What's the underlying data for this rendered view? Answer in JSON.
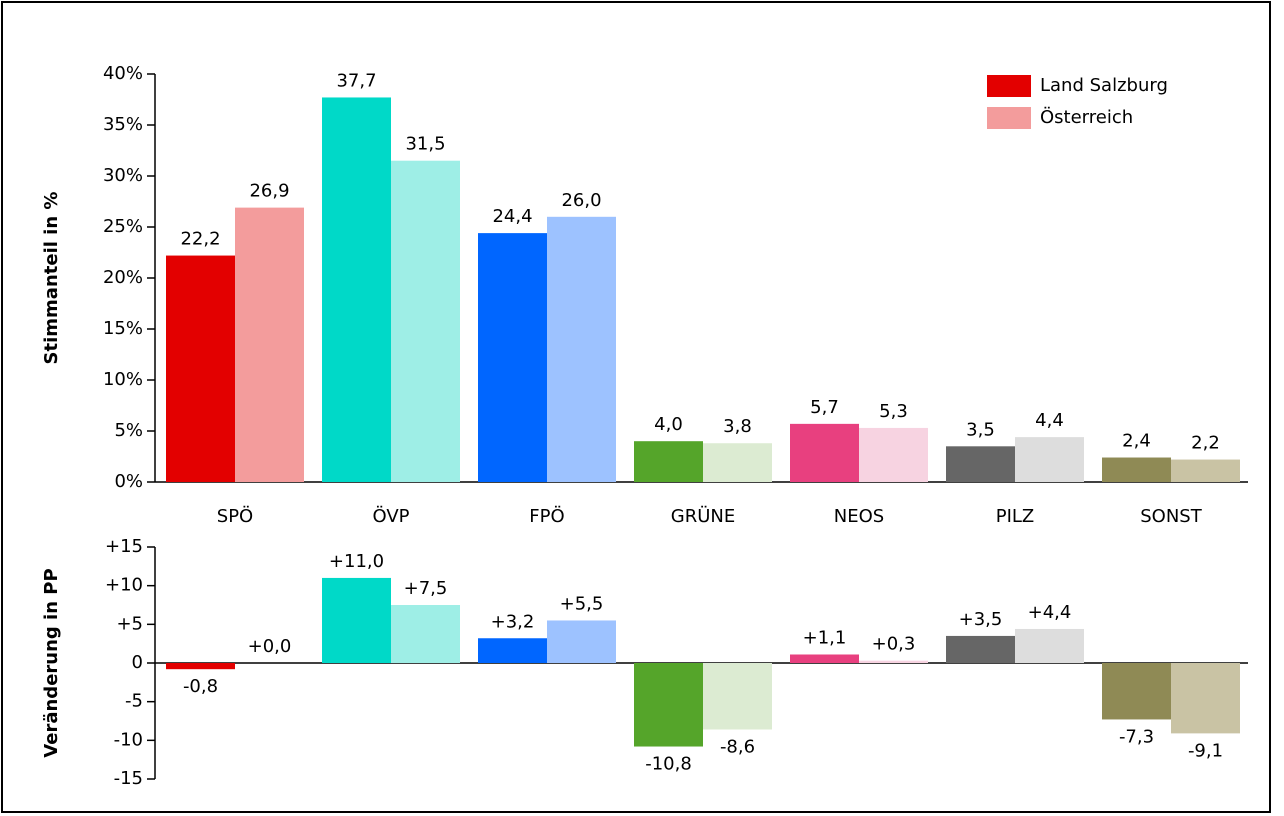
{
  "chart_data": [
    {
      "type": "bar",
      "y_label": "Stimmanteil in %",
      "categories": [
        "SPÖ",
        "ÖVP",
        "FPÖ",
        "GRÜNE",
        "NEOS",
        "PILZ",
        "SONST"
      ],
      "series": [
        {
          "name": "Land Salzburg",
          "color": "#e30000",
          "colors": [
            "#e30000",
            "#00d9c8",
            "#0066ff",
            "#55a52a",
            "#e8407f",
            "#666666",
            "#8f8a55"
          ],
          "values": [
            22.2,
            37.7,
            24.4,
            4.0,
            5.7,
            3.5,
            2.4
          ],
          "value_labels": [
            "22,2",
            "37,7",
            "24,4",
            "4,0",
            "5,7",
            "3,5",
            "2,4"
          ]
        },
        {
          "name": "Österreich",
          "color": "#f39c9c",
          "colors": [
            "#f39c9c",
            "#9eeee6",
            "#9dc2ff",
            "#dcebd2",
            "#f7d3e1",
            "#dddddd",
            "#c9c3a4"
          ],
          "values": [
            26.9,
            31.5,
            26.0,
            3.8,
            5.3,
            4.4,
            2.2
          ],
          "value_labels": [
            "26,9",
            "31,5",
            "26,0",
            "3,8",
            "5,3",
            "4,4",
            "2,2"
          ]
        }
      ],
      "ylim": [
        0,
        40
      ],
      "yticks": [
        {
          "value": 0,
          "label": "0%"
        },
        {
          "value": 5,
          "label": "5%"
        },
        {
          "value": 10,
          "label": "10%"
        },
        {
          "value": 15,
          "label": "15%"
        },
        {
          "value": 20,
          "label": "20%"
        },
        {
          "value": 25,
          "label": "25%"
        },
        {
          "value": 30,
          "label": "30%"
        },
        {
          "value": 35,
          "label": "35%"
        },
        {
          "value": 40,
          "label": "40%"
        }
      ],
      "legend": "upper right"
    },
    {
      "type": "bar",
      "y_label": "Veränderung in PP",
      "series": [
        {
          "colors": [
            "#e30000",
            "#00d9c8",
            "#0066ff",
            "#55a52a",
            "#e8407f",
            "#666666",
            "#8f8a55"
          ],
          "values": [
            -0.8,
            11.0,
            3.2,
            -10.8,
            1.1,
            3.5,
            -7.3
          ],
          "value_labels": [
            "-0,8",
            "+11,0",
            "+3,2",
            "-10,8",
            "+1,1",
            "+3,5",
            "-7,3"
          ]
        },
        {
          "colors": [
            "#f39c9c",
            "#9eeee6",
            "#9dc2ff",
            "#dcebd2",
            "#f7d3e1",
            "#dddddd",
            "#c9c3a4"
          ],
          "values": [
            0.0,
            7.5,
            5.5,
            -8.6,
            0.3,
            4.4,
            -9.1
          ],
          "value_labels": [
            "+0,0",
            "+7,5",
            "+5,5",
            "-8,6",
            "+0,3",
            "+4,4",
            "-9,1"
          ]
        }
      ],
      "ylim": [
        -15,
        15
      ],
      "yticks": [
        {
          "value": 15,
          "label": "+15"
        },
        {
          "value": 10,
          "label": "+10"
        },
        {
          "value": 5,
          "label": "+5"
        },
        0,
        -5,
        -10,
        -15
      ]
    }
  ]
}
